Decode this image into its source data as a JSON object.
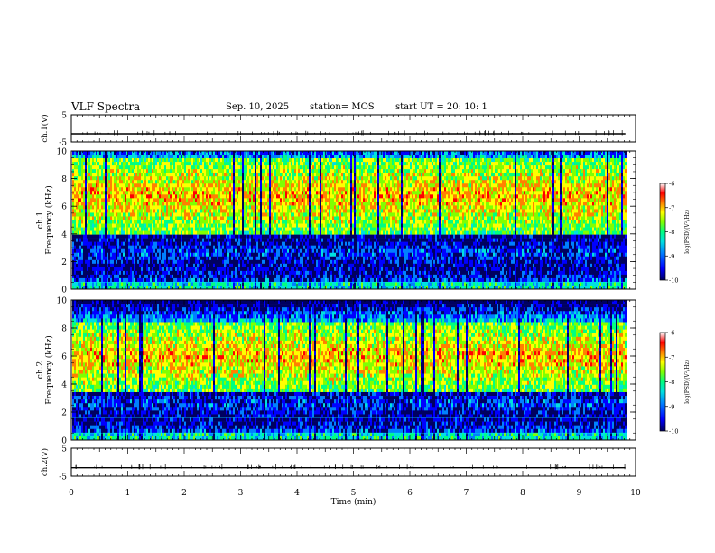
{
  "header": {
    "title": "VLF Spectra",
    "date": "Sep. 10, 2025",
    "station": "station= MOS",
    "start": "start  UT  =   20: 10: 1"
  },
  "colorbar": {
    "stops": [
      "#000060",
      "#0000ff",
      "#0080ff",
      "#00e0e0",
      "#00ff80",
      "#80ff00",
      "#ffff00",
      "#ff8000",
      "#ff0000",
      "#ffffff"
    ]
  },
  "chart_data": [
    {
      "type": "line",
      "name": "ch1-waveform",
      "ylabel": "ch.1(V)",
      "ylim": [
        -5,
        5
      ],
      "yticks": [
        "5",
        "-5"
      ],
      "xlim": [
        0,
        10
      ],
      "value": -2.0
    },
    {
      "type": "heatmap",
      "name": "ch1-spectrogram",
      "ylabel_line1": "ch.1",
      "ylabel_line2": "Frequency (kHz)",
      "ylim": [
        0,
        10
      ],
      "yticks": [
        "0",
        "2",
        "4",
        "6",
        "8",
        "10"
      ],
      "xlim": [
        0,
        10
      ],
      "band_khz": [
        4,
        9.5
      ],
      "colorbar": {
        "label": "log(PSD)(V²/Hz)",
        "range": [
          -10,
          -6
        ],
        "ticks": [
          "-6",
          "-7",
          "-8",
          "-9",
          "-10"
        ]
      }
    },
    {
      "type": "heatmap",
      "name": "ch2-spectrogram",
      "ylabel_line1": "ch.2",
      "ylabel_line2": "Frequency (kHz)",
      "ylim": [
        0,
        10
      ],
      "yticks": [
        "0",
        "2",
        "4",
        "6",
        "8",
        "10"
      ],
      "xlim": [
        0,
        10
      ],
      "band_khz": [
        3.5,
        8.5
      ],
      "colorbar": {
        "label": "log(PSD)(V²/Hz)",
        "range": [
          -10,
          -6
        ],
        "ticks": [
          "-6",
          "-7",
          "-8",
          "-9",
          "-10"
        ]
      }
    },
    {
      "type": "line",
      "name": "ch2-waveform",
      "ylabel": "ch.2(V)",
      "ylim": [
        -5,
        5
      ],
      "yticks": [
        "5",
        "-5"
      ],
      "xlim": [
        0,
        10
      ],
      "value": -2.0
    }
  ],
  "xaxis": {
    "label": "Time (min)",
    "ticks": [
      "0",
      "1",
      "2",
      "3",
      "4",
      "5",
      "6",
      "7",
      "8",
      "9",
      "10"
    ]
  }
}
